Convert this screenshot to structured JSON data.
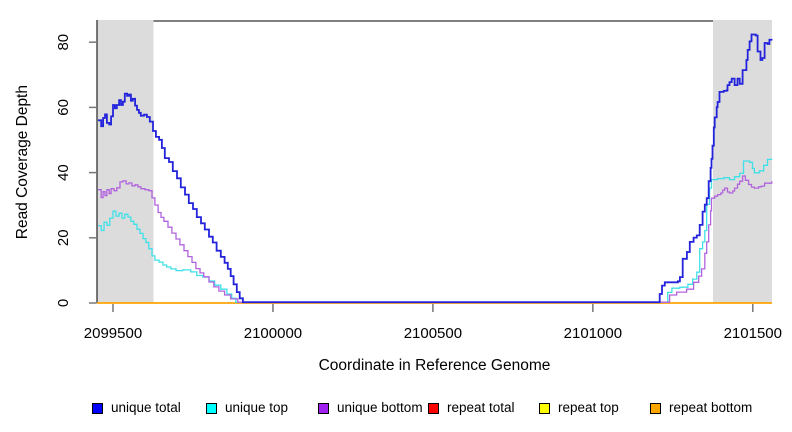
{
  "figure": {
    "xlabel": "Coordinate in Reference Genome",
    "ylabel": "Read Coverage Depth"
  },
  "chart_data": {
    "type": "line",
    "subtype": "step",
    "title": "",
    "xlabel": "Coordinate in Reference Genome",
    "ylabel": "Read Coverage Depth",
    "xlim": [
      2099450,
      2101560
    ],
    "ylim": [
      0,
      86.5
    ],
    "xticks": [
      2099500,
      2100000,
      2100500,
      2101000,
      2101500
    ],
    "yticks": [
      0,
      20,
      40,
      60,
      80
    ],
    "grid": false,
    "legend_position": "bottom",
    "plot_background": "#ffffff",
    "axis_color": "#333333",
    "tick_color": "#777777",
    "shaded_regions": [
      {
        "name": "left repeat region",
        "x0": 2099450,
        "x1": 2099627,
        "color": "#DCDCDC"
      },
      {
        "name": "right repeat region",
        "x0": 2101375,
        "x1": 2101560,
        "color": "#DCDCDC"
      }
    ],
    "series": [
      {
        "name": "unique total",
        "color": "#0000FF",
        "line_color": "#2323DC",
        "line_width": 1.8,
        "points": [
          [
            2099453,
            55.8
          ],
          [
            2099463,
            54.0
          ],
          [
            2099469,
            56.5
          ],
          [
            2099475,
            57.6
          ],
          [
            2099481,
            55.0
          ],
          [
            2099488,
            54.5
          ],
          [
            2099494,
            57.0
          ],
          [
            2099500,
            60.5
          ],
          [
            2099506,
            59.5
          ],
          [
            2099512,
            60.5
          ],
          [
            2099519,
            62.0
          ],
          [
            2099525,
            60.5
          ],
          [
            2099531,
            61.5
          ],
          [
            2099537,
            64.0
          ],
          [
            2099544,
            63.3
          ],
          [
            2099550,
            63.7
          ],
          [
            2099556,
            61.8
          ],
          [
            2099562,
            62.4
          ],
          [
            2099569,
            60.3
          ],
          [
            2099575,
            59.0
          ],
          [
            2099581,
            58.1
          ],
          [
            2099587,
            57.2
          ],
          [
            2099597,
            57.5
          ],
          [
            2099606,
            56.8
          ],
          [
            2099615,
            55.4
          ],
          [
            2099625,
            52.5
          ],
          [
            2099634,
            50.7
          ],
          [
            2099644,
            49.8
          ],
          [
            2099653,
            47.3
          ],
          [
            2099662,
            44.2
          ],
          [
            2099675,
            43.0
          ],
          [
            2099687,
            40.2
          ],
          [
            2099700,
            38.0
          ],
          [
            2099712,
            35.2
          ],
          [
            2099725,
            33.0
          ],
          [
            2099737,
            30.4
          ],
          [
            2099750,
            28.6
          ],
          [
            2099762,
            26.1
          ],
          [
            2099775,
            24.2
          ],
          [
            2099787,
            22.3
          ],
          [
            2099800,
            20.1
          ],
          [
            2099812,
            18.3
          ],
          [
            2099824,
            15.8
          ],
          [
            2099837,
            13.9
          ],
          [
            2099849,
            12.1
          ],
          [
            2099859,
            10.2
          ],
          [
            2099868,
            8.0
          ],
          [
            2099877,
            5.5
          ],
          [
            2099887,
            3.1
          ],
          [
            2099896,
            1.2
          ],
          [
            2099906,
            0
          ],
          [
            2101203,
            0
          ],
          [
            2101209,
            2.5
          ],
          [
            2101216,
            5.1
          ],
          [
            2101225,
            6.1
          ],
          [
            2101266,
            6.4
          ],
          [
            2101272,
            7.7
          ],
          [
            2101281,
            13.3
          ],
          [
            2101294,
            15.4
          ],
          [
            2101303,
            18.5
          ],
          [
            2101315,
            19.8
          ],
          [
            2101325,
            20.5
          ],
          [
            2101334,
            23.7
          ],
          [
            2101343,
            27.8
          ],
          [
            2101350,
            29.9
          ],
          [
            2101356,
            31.9
          ],
          [
            2101362,
            37.1
          ],
          [
            2101368,
            41.2
          ],
          [
            2101371,
            44.0
          ],
          [
            2101374,
            48.0
          ],
          [
            2101378,
            53.6
          ],
          [
            2101381,
            56.7
          ],
          [
            2101387,
            59.8
          ],
          [
            2101390,
            61.4
          ],
          [
            2101396,
            64.5
          ],
          [
            2101409,
            64.8
          ],
          [
            2101418,
            65.0
          ],
          [
            2101421,
            66.6
          ],
          [
            2101427,
            67.5
          ],
          [
            2101434,
            68.6
          ],
          [
            2101443,
            66.6
          ],
          [
            2101452,
            68.6
          ],
          [
            2101459,
            67.0
          ],
          [
            2101468,
            71.2
          ],
          [
            2101480,
            74.3
          ],
          [
            2101484,
            77.4
          ],
          [
            2101490,
            80.0
          ],
          [
            2101496,
            82.1
          ],
          [
            2101509,
            81.8
          ],
          [
            2101515,
            76.9
          ],
          [
            2101524,
            74.3
          ],
          [
            2101530,
            74.9
          ],
          [
            2101537,
            79.5
          ],
          [
            2101546,
            79.2
          ],
          [
            2101552,
            80.5
          ],
          [
            2101559,
            80.3
          ]
        ]
      },
      {
        "name": "unique top",
        "color": "#00FFFF",
        "line_color": "#3FE0E8",
        "line_width": 1.3,
        "points": [
          [
            2099453,
            23.5
          ],
          [
            2099463,
            22.0
          ],
          [
            2099472,
            24.5
          ],
          [
            2099481,
            23.6
          ],
          [
            2099490,
            25.8
          ],
          [
            2099500,
            27.9
          ],
          [
            2099509,
            26.4
          ],
          [
            2099519,
            27.3
          ],
          [
            2099528,
            25.8
          ],
          [
            2099537,
            27.0
          ],
          [
            2099547,
            26.1
          ],
          [
            2099556,
            24.8
          ],
          [
            2099565,
            23.9
          ],
          [
            2099575,
            22.4
          ],
          [
            2099584,
            21.1
          ],
          [
            2099594,
            19.5
          ],
          [
            2099603,
            18.3
          ],
          [
            2099612,
            16.4
          ],
          [
            2099622,
            14.2
          ],
          [
            2099631,
            12.9
          ],
          [
            2099644,
            12.3
          ],
          [
            2099656,
            11.4
          ],
          [
            2099668,
            10.8
          ],
          [
            2099681,
            10.2
          ],
          [
            2099697,
            9.7
          ],
          [
            2099718,
            9.9
          ],
          [
            2099743,
            9.3
          ],
          [
            2099762,
            8.2
          ],
          [
            2099781,
            7.7
          ],
          [
            2099800,
            6.5
          ],
          [
            2099818,
            5.2
          ],
          [
            2099837,
            4.0
          ],
          [
            2099856,
            2.5
          ],
          [
            2099871,
            1.2
          ],
          [
            2099884,
            0
          ],
          [
            2101228,
            0
          ],
          [
            2101234,
            3.0
          ],
          [
            2101247,
            4.3
          ],
          [
            2101272,
            4.6
          ],
          [
            2101297,
            5.5
          ],
          [
            2101312,
            7.1
          ],
          [
            2101325,
            9.2
          ],
          [
            2101334,
            16.4
          ],
          [
            2101343,
            18.5
          ],
          [
            2101350,
            22.0
          ],
          [
            2101356,
            30.0
          ],
          [
            2101365,
            35.0
          ],
          [
            2101371,
            37.6
          ],
          [
            2101390,
            37.9
          ],
          [
            2101409,
            38.2
          ],
          [
            2101427,
            37.6
          ],
          [
            2101443,
            38.5
          ],
          [
            2101459,
            39.5
          ],
          [
            2101471,
            43.3
          ],
          [
            2101490,
            42.9
          ],
          [
            2101499,
            41.0
          ],
          [
            2101505,
            39.7
          ],
          [
            2101521,
            40.3
          ],
          [
            2101534,
            42.0
          ],
          [
            2101546,
            43.8
          ],
          [
            2101559,
            44.0
          ]
        ]
      },
      {
        "name": "unique bottom",
        "color": "#A020F0",
        "line_color": "#B163DE",
        "line_width": 1.3,
        "points": [
          [
            2099453,
            34.5
          ],
          [
            2099463,
            32.1
          ],
          [
            2099469,
            33.9
          ],
          [
            2099475,
            32.7
          ],
          [
            2099481,
            34.5
          ],
          [
            2099488,
            33.3
          ],
          [
            2099494,
            34.8
          ],
          [
            2099503,
            34.2
          ],
          [
            2099512,
            35.1
          ],
          [
            2099522,
            36.9
          ],
          [
            2099531,
            37.2
          ],
          [
            2099541,
            36.3
          ],
          [
            2099550,
            36.6
          ],
          [
            2099559,
            35.7
          ],
          [
            2099569,
            36.0
          ],
          [
            2099578,
            35.4
          ],
          [
            2099587,
            34.8
          ],
          [
            2099600,
            34.5
          ],
          [
            2099612,
            34.2
          ],
          [
            2099622,
            32.0
          ],
          [
            2099631,
            29.8
          ],
          [
            2099641,
            27.5
          ],
          [
            2099650,
            26.0
          ],
          [
            2099659,
            24.8
          ],
          [
            2099672,
            23.0
          ],
          [
            2099684,
            21.2
          ],
          [
            2099697,
            19.4
          ],
          [
            2099709,
            17.6
          ],
          [
            2099722,
            15.8
          ],
          [
            2099734,
            14.0
          ],
          [
            2099747,
            12.2
          ],
          [
            2099759,
            10.3
          ],
          [
            2099772,
            9.0
          ],
          [
            2099784,
            7.8
          ],
          [
            2099800,
            6.2
          ],
          [
            2099815,
            4.7
          ],
          [
            2099831,
            3.4
          ],
          [
            2099849,
            2.2
          ],
          [
            2099868,
            1.0
          ],
          [
            2099890,
            0
          ],
          [
            2101215,
            0
          ],
          [
            2101240,
            2.2
          ],
          [
            2101262,
            3.1
          ],
          [
            2101293,
            4.0
          ],
          [
            2101315,
            6.1
          ],
          [
            2101331,
            8.0
          ],
          [
            2101340,
            10.2
          ],
          [
            2101350,
            15.0
          ],
          [
            2101356,
            18.5
          ],
          [
            2101362,
            23.7
          ],
          [
            2101368,
            28.0
          ],
          [
            2101371,
            31.9
          ],
          [
            2101381,
            32.5
          ],
          [
            2101390,
            33.0
          ],
          [
            2101400,
            33.5
          ],
          [
            2101406,
            34.4
          ],
          [
            2101412,
            35.0
          ],
          [
            2101421,
            33.8
          ],
          [
            2101427,
            33.5
          ],
          [
            2101437,
            34.1
          ],
          [
            2101443,
            35.0
          ],
          [
            2101452,
            36.2
          ],
          [
            2101459,
            37.1
          ],
          [
            2101468,
            38.7
          ],
          [
            2101477,
            37.4
          ],
          [
            2101487,
            36.1
          ],
          [
            2101496,
            35.3
          ],
          [
            2101505,
            35.0
          ],
          [
            2101518,
            35.4
          ],
          [
            2101527,
            35.6
          ],
          [
            2101537,
            36.5
          ],
          [
            2101559,
            37.1
          ]
        ]
      },
      {
        "name": "repeat total",
        "color": "#FF0000",
        "line_color": "#FF0000",
        "line_width": 1.3,
        "points": [
          [
            2099450,
            0
          ],
          [
            2101560,
            0
          ]
        ]
      },
      {
        "name": "repeat top",
        "color": "#FFFF00",
        "line_color": "#FFFF00",
        "line_width": 1.3,
        "points": [
          [
            2099450,
            0
          ],
          [
            2101560,
            0
          ]
        ]
      },
      {
        "name": "repeat bottom",
        "color": "#FFA500",
        "line_color": "#FFA500",
        "line_width": 1.5,
        "points": [
          [
            2099450,
            0
          ],
          [
            2101560,
            0
          ]
        ]
      }
    ]
  }
}
